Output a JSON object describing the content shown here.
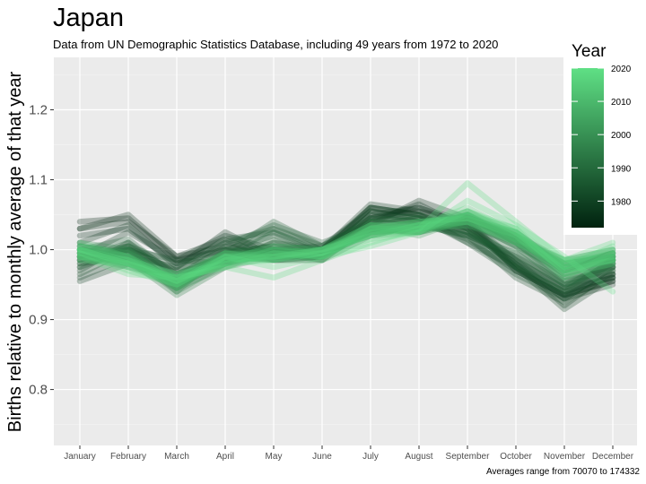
{
  "chart_data": {
    "type": "line",
    "title": "Japan",
    "subtitle": "Data from UN Demographic Statistics Database, including 49 years from 1972 to 2020",
    "ylabel": "Births relative to monthly average of that year",
    "xlabel": "",
    "caption": "Averages range from 70070 to 174332",
    "categories": [
      "January",
      "February",
      "March",
      "April",
      "May",
      "June",
      "July",
      "August",
      "September",
      "October",
      "November",
      "December"
    ],
    "ylim": [
      0.72,
      1.275
    ],
    "yticks": [
      0.8,
      0.9,
      1.0,
      1.1,
      1.2
    ],
    "ytick_labels": [
      "0.8",
      "0.9",
      "1.0",
      "1.1",
      "1.2"
    ],
    "grid": true,
    "legend": {
      "title": "Year",
      "position": "top-right",
      "range": [
        1972,
        2020
      ],
      "ticks": [
        1980,
        1990,
        2000,
        2010,
        2020
      ],
      "color_low": "#00220f",
      "color_high": "#5fe085"
    },
    "series": [
      {
        "year": 1972,
        "values": [
          1.04,
          1.045,
          0.985,
          1.0,
          0.985,
          0.99,
          1.045,
          1.055,
          1.04,
          0.97,
          0.935,
          0.955
        ]
      },
      {
        "year": 1973,
        "values": [
          1.03,
          1.04,
          0.99,
          1.005,
          0.99,
          0.995,
          1.05,
          1.06,
          1.035,
          0.975,
          0.93,
          0.95
        ]
      },
      {
        "year": 1974,
        "values": [
          1.02,
          1.03,
          0.98,
          1.01,
          0.995,
          0.99,
          1.04,
          1.065,
          1.03,
          0.98,
          0.94,
          0.96
        ]
      },
      {
        "year": 1975,
        "values": [
          1.03,
          1.05,
          0.99,
          1.015,
          0.985,
          0.985,
          1.035,
          1.07,
          1.045,
          0.97,
          0.935,
          0.955
        ]
      },
      {
        "year": 1976,
        "values": [
          1.01,
          1.035,
          0.975,
          1.025,
          0.99,
          0.99,
          1.045,
          1.06,
          1.04,
          0.985,
          0.945,
          0.96
        ]
      },
      {
        "year": 1977,
        "values": [
          0.99,
          1.025,
          0.985,
          1.02,
          1.0,
          0.995,
          1.06,
          1.05,
          1.02,
          0.99,
          0.95,
          0.965
        ]
      },
      {
        "year": 1978,
        "values": [
          0.985,
          1.0,
          0.97,
          1.0,
          0.995,
          1.0,
          1.065,
          1.055,
          1.03,
          0.975,
          0.935,
          0.965
        ]
      },
      {
        "year": 1979,
        "values": [
          0.955,
          0.98,
          0.96,
          0.995,
          1.005,
          1.0,
          1.06,
          1.05,
          1.025,
          0.98,
          0.92,
          0.97
        ]
      },
      {
        "year": 1980,
        "values": [
          0.96,
          0.99,
          0.95,
          0.985,
          1.0,
          1.005,
          1.055,
          1.045,
          1.035,
          0.985,
          0.93,
          0.975
        ]
      },
      {
        "year": 1981,
        "values": [
          0.97,
          1.01,
          0.965,
          0.99,
          1.0,
          0.995,
          1.06,
          1.05,
          1.01,
          0.975,
          0.915,
          0.96
        ]
      },
      {
        "year": 1982,
        "values": [
          0.965,
          1.0,
          0.985,
          0.98,
          1.01,
          1.0,
          1.055,
          1.04,
          1.02,
          0.96,
          0.925,
          0.965
        ]
      },
      {
        "year": 1983,
        "values": [
          0.975,
          1.005,
          0.98,
          1.0,
          1.02,
          0.995,
          1.05,
          1.045,
          1.01,
          0.965,
          0.93,
          0.975
        ]
      },
      {
        "year": 1984,
        "values": [
          0.98,
          0.99,
          0.975,
          1.015,
          1.025,
          1.0,
          1.045,
          1.04,
          1.015,
          0.97,
          0.935,
          0.98
        ]
      },
      {
        "year": 1985,
        "values": [
          0.975,
          1.0,
          0.97,
          1.01,
          1.03,
          1.005,
          1.04,
          1.035,
          1.02,
          0.975,
          0.94,
          0.985
        ]
      },
      {
        "year": 1986,
        "values": [
          0.99,
          0.995,
          0.96,
          1.005,
          1.035,
          1.01,
          1.035,
          1.045,
          1.025,
          0.98,
          0.945,
          0.99
        ]
      },
      {
        "year": 1987,
        "values": [
          0.985,
          1.01,
          0.955,
          0.995,
          1.04,
          1.005,
          1.04,
          1.05,
          1.03,
          0.975,
          0.94,
          0.985
        ]
      },
      {
        "year": 1988,
        "values": [
          0.995,
          1.005,
          0.965,
          0.99,
          1.03,
          1.0,
          1.045,
          1.04,
          1.025,
          0.985,
          0.945,
          0.98
        ]
      },
      {
        "year": 1989,
        "values": [
          1.0,
          1.015,
          0.96,
          0.985,
          1.025,
          0.995,
          1.03,
          1.035,
          1.02,
          0.995,
          0.95,
          0.975
        ]
      },
      {
        "year": 1990,
        "values": [
          0.98,
          1.0,
          0.95,
          0.98,
          1.015,
          0.99,
          1.035,
          1.045,
          1.03,
          0.99,
          0.955,
          0.97
        ]
      },
      {
        "year": 1991,
        "values": [
          0.99,
          0.995,
          0.955,
          0.985,
          1.01,
          0.995,
          1.025,
          1.04,
          1.035,
          1.0,
          0.96,
          0.975
        ]
      },
      {
        "year": 1992,
        "values": [
          0.985,
          1.005,
          0.945,
          0.995,
          1.005,
          0.99,
          1.03,
          1.03,
          1.04,
          1.005,
          0.95,
          0.98
        ]
      },
      {
        "year": 1993,
        "values": [
          1.0,
          0.99,
          0.95,
          0.99,
          1.0,
          0.985,
          1.02,
          1.035,
          1.045,
          1.01,
          0.955,
          0.985
        ]
      },
      {
        "year": 1994,
        "values": [
          0.995,
          1.0,
          0.94,
          1.0,
          0.995,
          0.99,
          1.025,
          1.03,
          1.05,
          1.015,
          0.965,
          0.99
        ]
      },
      {
        "year": 1995,
        "values": [
          0.99,
          0.985,
          0.935,
          0.975,
          1.0,
          0.995,
          1.03,
          1.025,
          1.04,
          1.005,
          0.97,
          0.995
        ]
      },
      {
        "year": 1996,
        "values": [
          1.005,
          0.995,
          0.945,
          0.985,
          0.99,
          1.0,
          1.035,
          1.03,
          1.035,
          1.01,
          0.965,
          0.985
        ]
      },
      {
        "year": 1997,
        "values": [
          1.0,
          0.99,
          0.94,
          0.98,
          0.995,
          0.985,
          1.04,
          1.035,
          1.045,
          1.015,
          0.97,
          0.99
        ]
      },
      {
        "year": 1998,
        "values": [
          1.01,
          1.0,
          0.95,
          0.99,
          0.985,
          0.99,
          1.03,
          1.025,
          1.05,
          1.01,
          0.96,
          0.98
        ]
      },
      {
        "year": 1999,
        "values": [
          0.995,
          0.98,
          0.945,
          0.975,
          0.99,
          0.995,
          1.025,
          1.03,
          1.055,
          1.02,
          0.975,
          0.995
        ]
      },
      {
        "year": 2000,
        "values": [
          1.0,
          0.985,
          0.955,
          0.985,
          0.995,
          1.0,
          1.02,
          1.035,
          1.045,
          1.015,
          0.97,
          0.985
        ]
      },
      {
        "year": 2001,
        "values": [
          1.005,
          0.99,
          0.95,
          0.995,
          0.99,
          0.99,
          1.03,
          1.025,
          1.05,
          1.01,
          0.98,
          0.99
        ]
      },
      {
        "year": 2002,
        "values": [
          0.99,
          0.975,
          0.96,
          0.98,
          1.0,
          0.995,
          1.025,
          1.03,
          1.04,
          1.025,
          0.975,
          0.995
        ]
      },
      {
        "year": 2003,
        "values": [
          1.0,
          0.985,
          0.945,
          0.99,
          0.985,
          1.0,
          1.035,
          1.02,
          1.045,
          1.02,
          0.985,
          1.0
        ]
      },
      {
        "year": 2004,
        "values": [
          0.995,
          0.98,
          0.955,
          0.985,
          0.99,
          0.995,
          1.03,
          1.03,
          1.05,
          1.015,
          0.98,
          0.99
        ]
      },
      {
        "year": 2005,
        "values": [
          1.005,
          0.995,
          0.96,
          0.995,
          0.995,
          1.0,
          1.02,
          1.025,
          1.04,
          1.02,
          0.97,
          0.985
        ]
      },
      {
        "year": 2006,
        "values": [
          0.995,
          0.985,
          0.95,
          0.99,
          1.0,
          0.99,
          1.025,
          1.035,
          1.045,
          1.025,
          0.975,
          0.995
        ]
      },
      {
        "year": 2007,
        "values": [
          1.0,
          0.99,
          0.955,
          0.98,
          0.995,
          0.995,
          1.03,
          1.03,
          1.035,
          1.015,
          0.985,
          1.0
        ]
      },
      {
        "year": 2008,
        "values": [
          0.99,
          0.98,
          0.965,
          0.995,
          0.99,
          1.0,
          1.025,
          1.025,
          1.05,
          1.02,
          0.98,
          0.99
        ]
      },
      {
        "year": 2009,
        "values": [
          1.0,
          0.975,
          0.96,
          0.99,
          0.985,
          0.995,
          1.035,
          1.035,
          1.04,
          1.01,
          0.975,
          0.985
        ]
      },
      {
        "year": 2010,
        "values": [
          0.995,
          0.985,
          0.95,
          0.985,
          0.99,
          1.0,
          1.03,
          1.03,
          1.045,
          1.025,
          0.98,
          0.995
        ]
      },
      {
        "year": 2011,
        "values": [
          1.005,
          0.99,
          0.945,
          0.99,
          0.995,
          0.99,
          1.025,
          1.035,
          1.05,
          1.015,
          0.985,
          0.99
        ]
      },
      {
        "year": 2012,
        "values": [
          0.99,
          0.985,
          0.955,
          0.98,
          1.0,
          0.995,
          1.03,
          1.04,
          1.045,
          1.02,
          0.975,
          0.985
        ]
      },
      {
        "year": 2013,
        "values": [
          1.0,
          0.98,
          0.96,
          0.995,
          0.985,
          1.0,
          1.035,
          1.03,
          1.04,
          1.01,
          0.98,
          1.0
        ]
      },
      {
        "year": 2014,
        "values": [
          0.995,
          0.975,
          0.95,
          0.99,
          0.99,
          0.995,
          1.02,
          1.035,
          1.055,
          1.025,
          0.97,
          0.99
        ]
      },
      {
        "year": 2015,
        "values": [
          1.01,
          0.99,
          0.955,
          0.985,
          1.005,
          1.0,
          1.025,
          1.03,
          1.05,
          1.03,
          0.965,
          0.98
        ]
      },
      {
        "year": 2016,
        "values": [
          0.985,
          0.98,
          0.96,
          0.975,
          0.995,
          0.99,
          1.03,
          1.04,
          1.045,
          1.02,
          0.96,
          0.995
        ]
      },
      {
        "year": 2017,
        "values": [
          0.995,
          0.97,
          0.95,
          0.985,
          0.99,
          1.0,
          1.02,
          1.035,
          1.06,
          1.025,
          0.97,
          0.985
        ]
      },
      {
        "year": 2018,
        "values": [
          1.0,
          0.985,
          0.965,
          0.98,
          0.985,
          0.995,
          1.015,
          1.025,
          1.055,
          1.03,
          0.975,
          1.005
        ]
      },
      {
        "year": 2019,
        "values": [
          0.99,
          0.965,
          0.96,
          0.975,
          0.96,
          0.985,
          1.01,
          1.03,
          1.095,
          1.04,
          0.985,
          1.01
        ]
      },
      {
        "year": 2020,
        "values": [
          1.0,
          0.98,
          0.955,
          0.99,
          0.975,
          0.99,
          1.005,
          1.025,
          1.07,
          1.035,
          0.99,
          0.94
        ]
      }
    ]
  }
}
